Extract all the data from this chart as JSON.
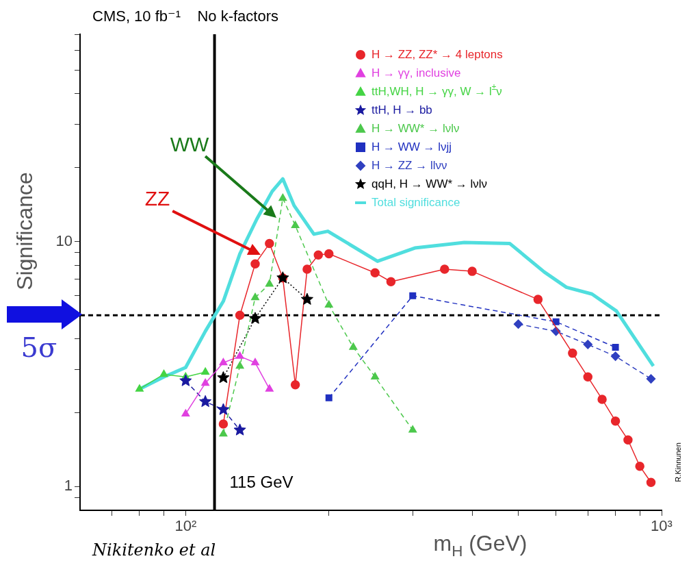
{
  "chart_data": {
    "type": "line",
    "title": "CMS, 10 fb⁻¹    No k-factors",
    "xlabel": "m$_{H}$ (GeV)",
    "ylabel": "Significance",
    "log": "xy",
    "grid": false,
    "legend": "top right",
    "xlim": [
      60,
      1000
    ],
    "ylim": [
      0.8,
      70
    ],
    "xticks": [
      {
        "value": 70,
        "label": null
      },
      {
        "value": 80,
        "label": null
      },
      {
        "value": 90,
        "label": null
      },
      {
        "value": 100,
        "label": "10²"
      },
      {
        "value": 200,
        "label": null
      },
      {
        "value": 300,
        "label": null
      },
      {
        "value": 400,
        "label": null
      },
      {
        "value": 500,
        "label": null
      },
      {
        "value": 600,
        "label": null
      },
      {
        "value": 700,
        "label": null
      },
      {
        "value": 800,
        "label": null
      },
      {
        "value": 900,
        "label": null
      },
      {
        "value": 1000,
        "label": "10³"
      }
    ],
    "yticks": [
      {
        "value": 0.9,
        "label": null
      },
      1,
      {
        "value": 2,
        "label": null
      },
      {
        "value": 3,
        "label": null
      },
      {
        "value": 4,
        "label": null
      },
      {
        "value": 5,
        "label": null
      },
      {
        "value": 6,
        "label": null
      },
      {
        "value": 7,
        "label": null
      },
      {
        "value": 8,
        "label": null
      },
      {
        "value": 9,
        "label": null
      },
      10,
      {
        "value": 20,
        "label": null
      },
      {
        "value": 30,
        "label": null
      },
      {
        "value": 40,
        "label": null
      },
      {
        "value": 50,
        "label": null
      },
      {
        "value": 60,
        "label": null
      },
      {
        "value": 70,
        "label": null
      }
    ],
    "series": [
      {
        "name": "H → ZZ, ZZ* → 4 leptons",
        "color": "#e8262b",
        "marker": "circle",
        "line_style": "solid",
        "x": [
          120,
          130,
          140,
          150,
          160,
          170,
          180,
          190,
          200,
          250,
          270,
          350,
          400,
          550,
          650,
          700,
          750,
          800,
          850,
          900,
          950
        ],
        "values": [
          1.8,
          5.0,
          8.1,
          9.8,
          7.1,
          2.6,
          7.7,
          8.8,
          8.9,
          7.45,
          6.85,
          7.7,
          7.55,
          5.8,
          3.5,
          2.8,
          2.27,
          1.85,
          1.55,
          1.21,
          1.04
        ]
      },
      {
        "name": "H → γγ, inclusive",
        "color": "#e040e0",
        "marker": "triangle",
        "line_style": "solid",
        "x": [
          100,
          110,
          120,
          130,
          140,
          150
        ],
        "values": [
          1.98,
          2.64,
          3.2,
          3.4,
          3.2,
          2.5
        ]
      },
      {
        "name": "ttH,WH, H → γγ, W → l$^{±}$ν",
        "color": "#44d444",
        "marker": "triangle",
        "line_style": "solid",
        "x": [
          80,
          90,
          100,
          110
        ],
        "values": [
          2.5,
          2.87,
          2.8,
          2.93
        ]
      },
      {
        "name": "ttH, H → bb",
        "color": "#1a1aa0",
        "marker": "star",
        "line_style": "dashed",
        "x": [
          100,
          110,
          120,
          130
        ],
        "values": [
          2.7,
          2.22,
          2.06,
          1.7
        ]
      },
      {
        "name": "H → WW* → lνlν",
        "color": "#4cc84c",
        "marker": "triangle",
        "line_style": "dashed",
        "x": [
          120,
          130,
          140,
          150,
          160,
          170,
          200,
          225,
          250,
          300
        ],
        "values": [
          1.64,
          3.1,
          5.9,
          6.7,
          15,
          11.6,
          5.5,
          3.7,
          2.8,
          1.7
        ]
      },
      {
        "name": "H → WW → lνjj",
        "color": "#2030c0",
        "marker": "square",
        "line_style": "dashed",
        "x": [
          200,
          300,
          600,
          800
        ],
        "values": [
          2.3,
          6.0,
          4.7,
          3.7
        ]
      },
      {
        "name": "H → ZZ → llνν",
        "color": "#3040c0",
        "marker": "diamond",
        "line_style": "dashed",
        "x": [
          500,
          600,
          700,
          800,
          950
        ],
        "values": [
          4.6,
          4.3,
          3.8,
          3.4,
          2.75
        ]
      },
      {
        "name": "qqH, H → WW* → lνlν",
        "color": "#000000",
        "marker": "star",
        "line_style": "dotted",
        "x": [
          120,
          140,
          160,
          180
        ],
        "values": [
          2.78,
          4.85,
          7.1,
          5.8
        ]
      },
      {
        "name": "Total significance",
        "color": "#50dede",
        "marker": "none",
        "line_style": "solid",
        "x": [
          80,
          90,
          100,
          110,
          120,
          130,
          141,
          152,
          160,
          169,
          186,
          199,
          253,
          303,
          385,
          480,
          567,
          631,
          714,
          804,
          961
        ],
        "values": [
          2.5,
          2.8,
          3.06,
          4.3,
          5.7,
          8.9,
          12.3,
          16,
          18,
          14,
          10.7,
          11,
          8.3,
          9.4,
          9.9,
          9.8,
          7.5,
          6.5,
          6.1,
          5.2,
          3.1
        ]
      }
    ],
    "ref_lines": [
      {
        "axis": "y",
        "value": 5,
        "label": "5σ",
        "line_style": "dashed",
        "color": "#000000"
      },
      {
        "axis": "x",
        "value": 115,
        "label": "115 GeV",
        "line_style": "solid",
        "color": "#000000"
      }
    ],
    "annotations": [
      "ZZ",
      "WW",
      "Nikitenko et al",
      "R.Kinnunen"
    ]
  }
}
